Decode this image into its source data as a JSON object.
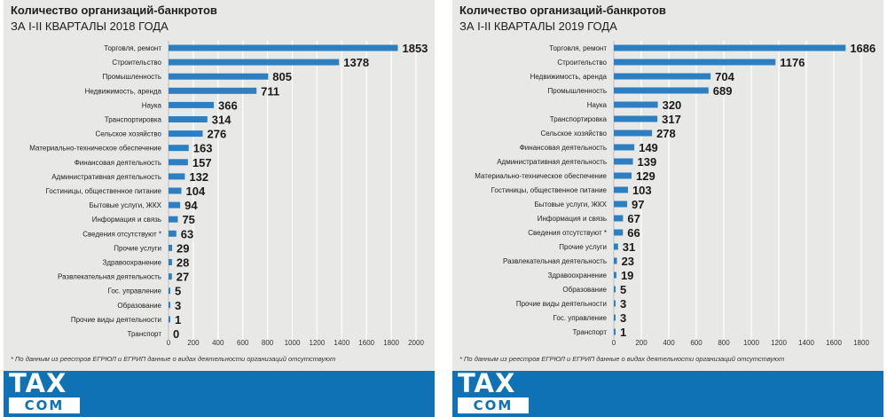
{
  "colors": {
    "bar": "#2e7fc1",
    "grid": "#ffffff",
    "band": "#0e72b5"
  },
  "logo": {
    "top": "TAX",
    "bottom": "COM"
  },
  "chart_data": [
    {
      "type": "bar",
      "orientation": "horizontal",
      "title": "Количество организаций-банкротов",
      "subtitle": "ЗА I-II КВАРТАЛЫ 2018 ГОДА",
      "footnote": "* По данным из реестров ЕГРЮЛ и ЕГРИП данные о видах деятельности организаций отсутствуют",
      "xlim": [
        0,
        2000
      ],
      "xticks": [
        0,
        200,
        400,
        600,
        800,
        1000,
        1200,
        1400,
        1600,
        1800,
        2000
      ],
      "categories": [
        "Торговля, ремонт",
        "Строительство",
        "Промышленность",
        "Недвижимость, аренда",
        "Наука",
        "Транспортировка",
        "Сельское хозяйство",
        "Материально-техническое обеспечение",
        "Финансовая деятельность",
        "Административная деятельность",
        "Гостиницы, общественное питание",
        "Бытовые услуги, ЖКХ",
        "Информация и связь",
        "Сведения отсутствуют *",
        "Прочие услуги",
        "Здравоохранение",
        "Развлекательная деятельность",
        "Гос. управление",
        "Образование",
        "Прочие виды деятельности",
        "Транспорт"
      ],
      "values": [
        1853,
        1378,
        805,
        711,
        366,
        314,
        276,
        163,
        157,
        132,
        104,
        94,
        75,
        63,
        29,
        28,
        27,
        5,
        3,
        1,
        0
      ]
    },
    {
      "type": "bar",
      "orientation": "horizontal",
      "title": "Количество организаций-банкротов",
      "subtitle": "ЗА I-II КВАРТАЛЫ 2019 ГОДА",
      "footnote": "* По данным из реестров ЕГРЮЛ и ЕГРИП данные о видах деятельности организаций отсутствуют",
      "xlim": [
        0,
        1800
      ],
      "xticks": [
        0,
        200,
        400,
        600,
        800,
        1000,
        1200,
        1400,
        1600,
        1800
      ],
      "categories": [
        "Торговля, ремонт",
        "Строительство",
        "Недвижимость, аренда",
        "Промышленность",
        "Наука",
        "Транспортировка",
        "Сельское хозяйство",
        "Финансовая деятельность",
        "Административная деятельность",
        "Материально-техническое обеспечение",
        "Гостиницы, общественное питание",
        "Бытовые услуги, ЖКХ",
        "Информация и связь",
        "Сведения отсутствуют *",
        "Прочие услуги",
        "Развлекательная деятельность",
        "Здравоохранение",
        "Образование",
        "Прочие виды деятельности",
        "Гос. управление",
        "Транспорт"
      ],
      "values": [
        1686,
        1176,
        704,
        689,
        320,
        317,
        278,
        149,
        139,
        129,
        103,
        97,
        67,
        66,
        31,
        23,
        19,
        5,
        3,
        3,
        1
      ]
    }
  ]
}
